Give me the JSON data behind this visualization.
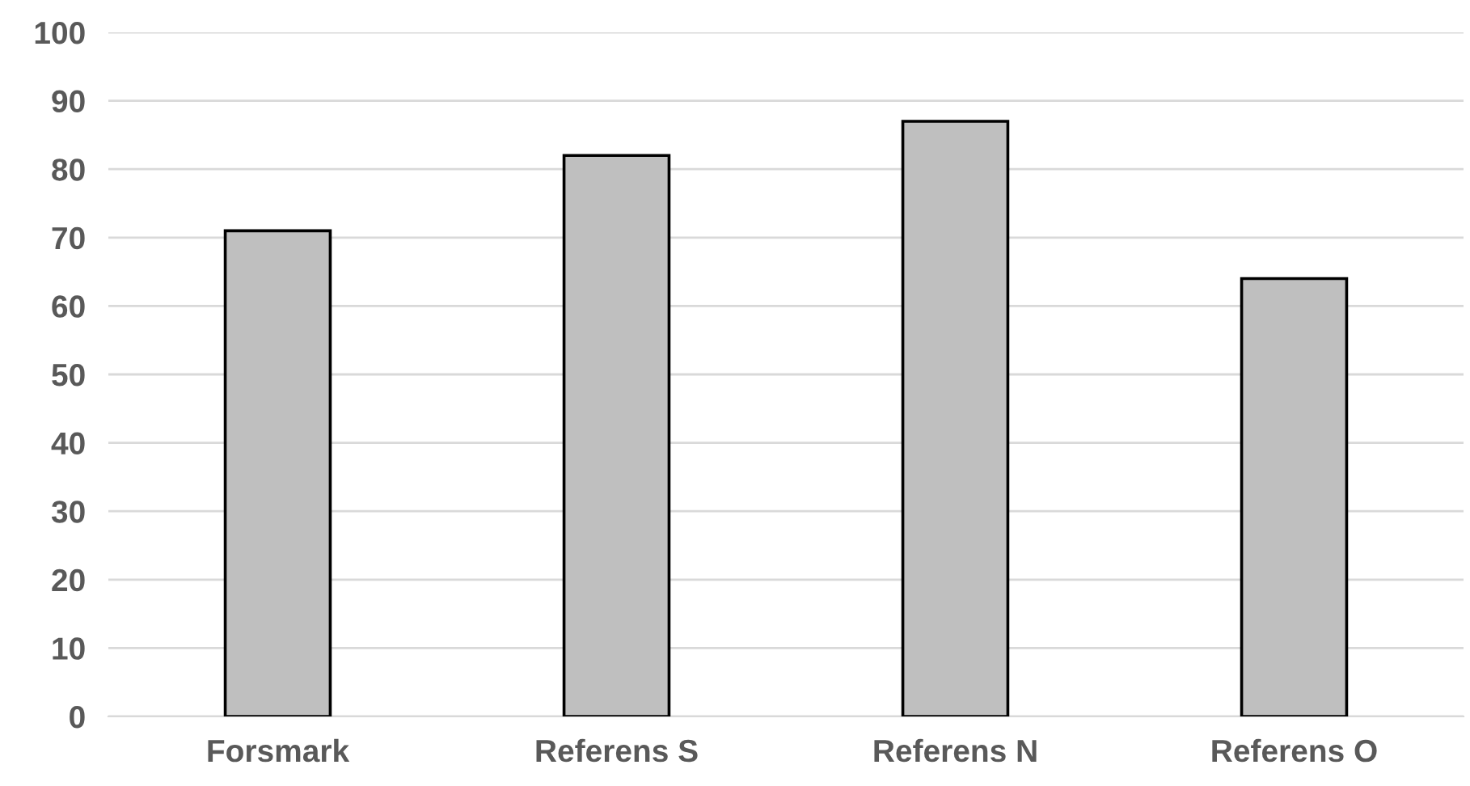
{
  "chart_data": {
    "type": "bar",
    "categories": [
      "Forsmark",
      "Referens S",
      "Referens N",
      "Referens O"
    ],
    "values": [
      71,
      82,
      87,
      64
    ],
    "color": "#bfbfbf",
    "ylim": [
      0,
      100
    ],
    "yticks": [
      0,
      10,
      20,
      30,
      40,
      50,
      60,
      70,
      80,
      90,
      100
    ],
    "grid": "y"
  }
}
